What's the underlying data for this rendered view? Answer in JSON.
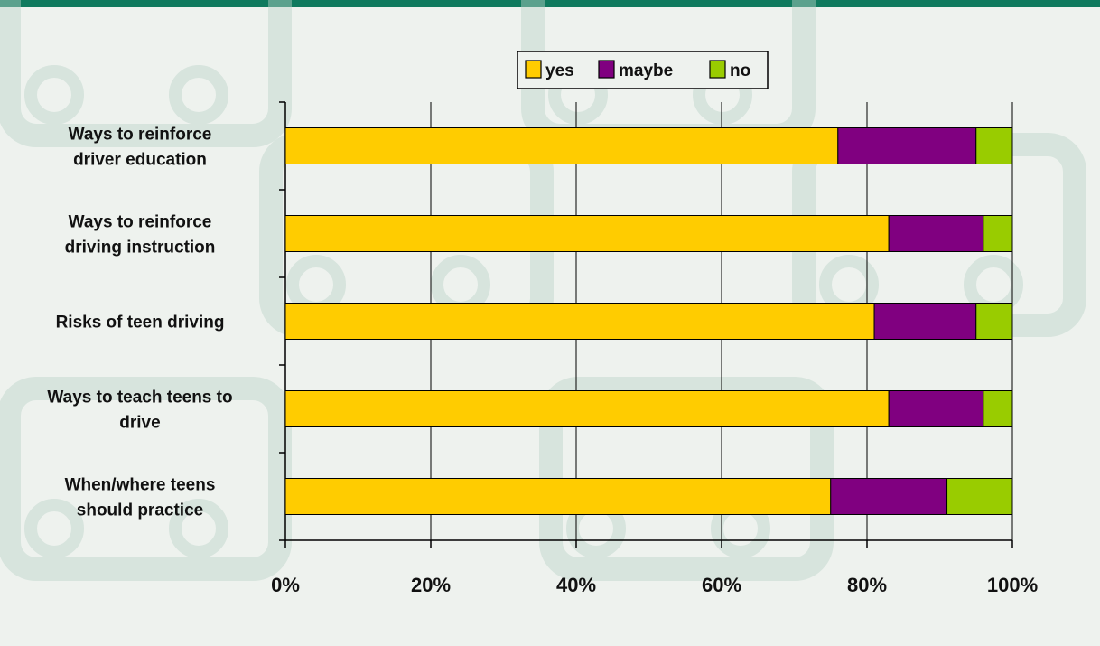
{
  "chart_data": {
    "type": "bar",
    "orientation": "horizontal",
    "stacked": "percent",
    "categories": [
      [
        "Ways to reinforce",
        "driver education"
      ],
      [
        "Ways to reinforce",
        "driving instruction"
      ],
      [
        "Risks of teen driving"
      ],
      [
        "Ways to teach teens to",
        "drive"
      ],
      [
        "When/where teens",
        "should practice"
      ]
    ],
    "series": [
      {
        "name": "yes",
        "color": "#ffcc00",
        "values": [
          76,
          83,
          81,
          83,
          75
        ]
      },
      {
        "name": "maybe",
        "color": "#800080",
        "values": [
          19,
          13,
          14,
          13,
          16
        ]
      },
      {
        "name": "no",
        "color": "#99cc00",
        "values": [
          5,
          4,
          5,
          4,
          9
        ]
      }
    ],
    "xlim": [
      0,
      100
    ],
    "x_ticks": [
      "0%",
      "20%",
      "40%",
      "60%",
      "80%",
      "100%"
    ],
    "grid": true,
    "legend_position": "top-center"
  },
  "colors": {
    "accent_bar": "#0f7a5e",
    "background": "#eef2ee",
    "watermark": "#b9d3c8"
  }
}
